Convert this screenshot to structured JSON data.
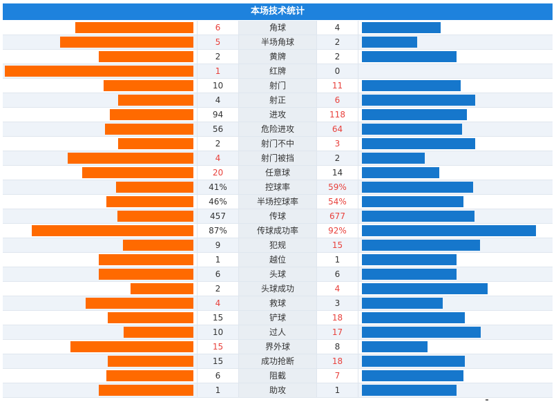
{
  "title": "本场技术统计",
  "colors": {
    "home": "#ff6a00",
    "away": "#1677cc",
    "highlight": "#e8413c",
    "header": "#1e82dd"
  },
  "rows": [
    {
      "label": "角球",
      "home": "6",
      "away": "4",
      "home_bar": 0.219,
      "away_bar": 0.146,
      "winner": "home"
    },
    {
      "label": "半场角球",
      "home": "5",
      "away": "2",
      "home_bar": 0.248,
      "away_bar": 0.102,
      "winner": "home"
    },
    {
      "label": "黄牌",
      "home": "2",
      "away": "2",
      "home_bar": 0.175,
      "away_bar": 0.175,
      "winner": "none"
    },
    {
      "label": "红牌",
      "home": "1",
      "away": "0",
      "home_bar": 0.35,
      "away_bar": 0,
      "winner": "home"
    },
    {
      "label": "射门",
      "home": "10",
      "away": "11",
      "home_bar": 0.167,
      "away_bar": 0.183,
      "winner": "away"
    },
    {
      "label": "射正",
      "home": "4",
      "away": "6",
      "home_bar": 0.14,
      "away_bar": 0.21,
      "winner": "away"
    },
    {
      "label": "进攻",
      "home": "94",
      "away": "118",
      "home_bar": 0.155,
      "away_bar": 0.195,
      "winner": "away"
    },
    {
      "label": "危险进攻",
      "home": "56",
      "away": "64",
      "home_bar": 0.164,
      "away_bar": 0.186,
      "winner": "away"
    },
    {
      "label": "射门不中",
      "home": "2",
      "away": "3",
      "home_bar": 0.14,
      "away_bar": 0.21,
      "winner": "away"
    },
    {
      "label": "射门被挡",
      "home": "4",
      "away": "2",
      "home_bar": 0.233,
      "away_bar": 0.117,
      "winner": "home"
    },
    {
      "label": "任意球",
      "home": "20",
      "away": "14",
      "home_bar": 0.206,
      "away_bar": 0.144,
      "winner": "home"
    },
    {
      "label": "控球率",
      "home": "41%",
      "away": "59%",
      "home_bar": 0.144,
      "away_bar": 0.206,
      "winner": "away"
    },
    {
      "label": "半场控球率",
      "home": "46%",
      "away": "54%",
      "home_bar": 0.161,
      "away_bar": 0.189,
      "winner": "away"
    },
    {
      "label": "传球",
      "home": "457",
      "away": "677",
      "home_bar": 0.141,
      "away_bar": 0.209,
      "winner": "away"
    },
    {
      "label": "传球成功率",
      "home": "87%",
      "away": "92%",
      "home_bar": 0.3,
      "away_bar": 0.323,
      "winner": "away"
    },
    {
      "label": "犯规",
      "home": "9",
      "away": "15",
      "home_bar": 0.131,
      "away_bar": 0.219,
      "winner": "away"
    },
    {
      "label": "越位",
      "home": "1",
      "away": "1",
      "home_bar": 0.175,
      "away_bar": 0.175,
      "winner": "none"
    },
    {
      "label": "头球",
      "home": "6",
      "away": "6",
      "home_bar": 0.175,
      "away_bar": 0.175,
      "winner": "none"
    },
    {
      "label": "头球成功",
      "home": "2",
      "away": "4",
      "home_bar": 0.117,
      "away_bar": 0.233,
      "winner": "away"
    },
    {
      "label": "救球",
      "home": "4",
      "away": "3",
      "home_bar": 0.2,
      "away_bar": 0.15,
      "winner": "home"
    },
    {
      "label": "铲球",
      "home": "15",
      "away": "18",
      "home_bar": 0.159,
      "away_bar": 0.191,
      "winner": "away"
    },
    {
      "label": "过人",
      "home": "10",
      "away": "17",
      "home_bar": 0.13,
      "away_bar": 0.22,
      "winner": "away"
    },
    {
      "label": "界外球",
      "home": "15",
      "away": "8",
      "home_bar": 0.228,
      "away_bar": 0.122,
      "winner": "home"
    },
    {
      "label": "成功抢断",
      "home": "15",
      "away": "18",
      "home_bar": 0.159,
      "away_bar": 0.191,
      "winner": "away"
    },
    {
      "label": "阻截",
      "home": "6",
      "away": "7",
      "home_bar": 0.162,
      "away_bar": 0.188,
      "winner": "away"
    },
    {
      "label": "助攻",
      "home": "1",
      "away": "1",
      "home_bar": 0.175,
      "away_bar": 0.175,
      "winner": "none"
    }
  ]
}
